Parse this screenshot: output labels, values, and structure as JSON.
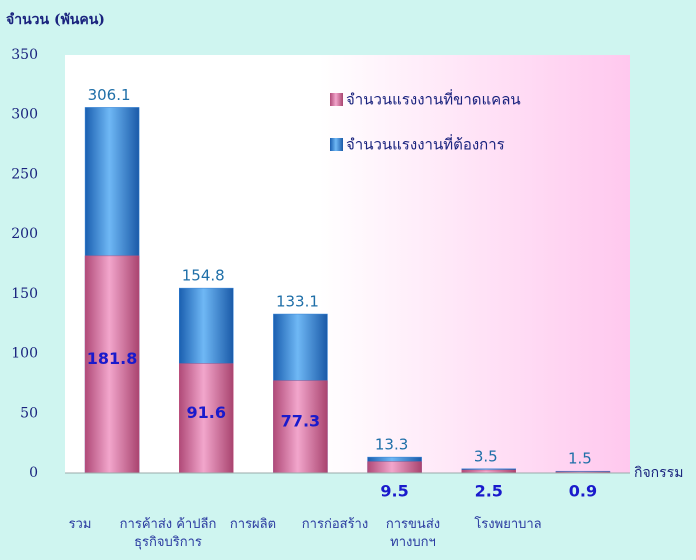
{
  "chart_data": {
    "type": "bar",
    "y_label": "จำนวน (พันคน)",
    "x_label": "กิจกรรม",
    "categories": [
      "รวม",
      "การค้าส่ง ค้าปลีก ธุรกิจบริการ",
      "การผลิต",
      "การก่อสร้าง",
      "การขนส่ง ทางบกฯ",
      "โรงพยาบาล"
    ],
    "series": [
      {
        "name": "จำนวนแรงงานที่ขาดแคลน",
        "color": "#c0507e",
        "values": [
          181.8,
          91.6,
          77.3,
          9.5,
          2.5,
          0.9
        ]
      },
      {
        "name": "จำนวนแรงงานที่ต้องการ",
        "color": "#2e7fd6",
        "values": [
          306.1,
          154.8,
          133.1,
          13.3,
          3.5,
          1.5
        ]
      }
    ],
    "overlap": true,
    "ylim": [
      0,
      350
    ],
    "yticks": [
      0,
      50,
      100,
      150,
      200,
      250,
      300,
      350
    ],
    "grid": false
  }
}
